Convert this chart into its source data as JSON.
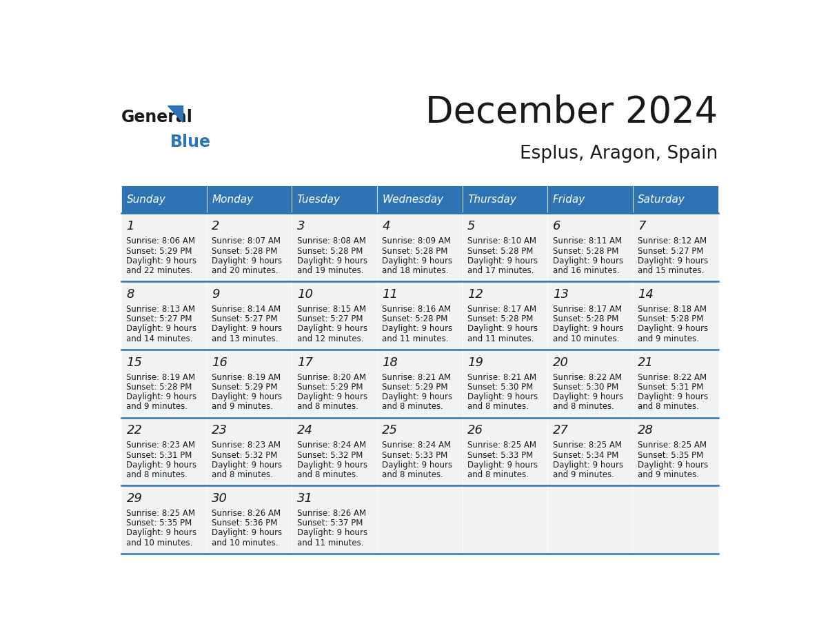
{
  "title": "December 2024",
  "subtitle": "Esplus, Aragon, Spain",
  "header_color": "#2e74b5",
  "header_text_color": "#ffffff",
  "day_names": [
    "Sunday",
    "Monday",
    "Tuesday",
    "Wednesday",
    "Thursday",
    "Friday",
    "Saturday"
  ],
  "title_color": "#1a1a1a",
  "subtitle_color": "#1a1a1a",
  "cell_bg_color": "#f2f2f2",
  "divider_color": "#2e74b5",
  "text_color": "#1a1a1a",
  "days": [
    {
      "day": 1,
      "col": 0,
      "row": 0,
      "sunrise": "8:06 AM",
      "sunset": "5:29 PM",
      "daylight": "9 hours and 22 minutes"
    },
    {
      "day": 2,
      "col": 1,
      "row": 0,
      "sunrise": "8:07 AM",
      "sunset": "5:28 PM",
      "daylight": "9 hours and 20 minutes"
    },
    {
      "day": 3,
      "col": 2,
      "row": 0,
      "sunrise": "8:08 AM",
      "sunset": "5:28 PM",
      "daylight": "9 hours and 19 minutes"
    },
    {
      "day": 4,
      "col": 3,
      "row": 0,
      "sunrise": "8:09 AM",
      "sunset": "5:28 PM",
      "daylight": "9 hours and 18 minutes"
    },
    {
      "day": 5,
      "col": 4,
      "row": 0,
      "sunrise": "8:10 AM",
      "sunset": "5:28 PM",
      "daylight": "9 hours and 17 minutes"
    },
    {
      "day": 6,
      "col": 5,
      "row": 0,
      "sunrise": "8:11 AM",
      "sunset": "5:28 PM",
      "daylight": "9 hours and 16 minutes"
    },
    {
      "day": 7,
      "col": 6,
      "row": 0,
      "sunrise": "8:12 AM",
      "sunset": "5:27 PM",
      "daylight": "9 hours and 15 minutes"
    },
    {
      "day": 8,
      "col": 0,
      "row": 1,
      "sunrise": "8:13 AM",
      "sunset": "5:27 PM",
      "daylight": "9 hours and 14 minutes"
    },
    {
      "day": 9,
      "col": 1,
      "row": 1,
      "sunrise": "8:14 AM",
      "sunset": "5:27 PM",
      "daylight": "9 hours and 13 minutes"
    },
    {
      "day": 10,
      "col": 2,
      "row": 1,
      "sunrise": "8:15 AM",
      "sunset": "5:27 PM",
      "daylight": "9 hours and 12 minutes"
    },
    {
      "day": 11,
      "col": 3,
      "row": 1,
      "sunrise": "8:16 AM",
      "sunset": "5:28 PM",
      "daylight": "9 hours and 11 minutes"
    },
    {
      "day": 12,
      "col": 4,
      "row": 1,
      "sunrise": "8:17 AM",
      "sunset": "5:28 PM",
      "daylight": "9 hours and 11 minutes"
    },
    {
      "day": 13,
      "col": 5,
      "row": 1,
      "sunrise": "8:17 AM",
      "sunset": "5:28 PM",
      "daylight": "9 hours and 10 minutes"
    },
    {
      "day": 14,
      "col": 6,
      "row": 1,
      "sunrise": "8:18 AM",
      "sunset": "5:28 PM",
      "daylight": "9 hours and 9 minutes"
    },
    {
      "day": 15,
      "col": 0,
      "row": 2,
      "sunrise": "8:19 AM",
      "sunset": "5:28 PM",
      "daylight": "9 hours and 9 minutes"
    },
    {
      "day": 16,
      "col": 1,
      "row": 2,
      "sunrise": "8:19 AM",
      "sunset": "5:29 PM",
      "daylight": "9 hours and 9 minutes"
    },
    {
      "day": 17,
      "col": 2,
      "row": 2,
      "sunrise": "8:20 AM",
      "sunset": "5:29 PM",
      "daylight": "9 hours and 8 minutes"
    },
    {
      "day": 18,
      "col": 3,
      "row": 2,
      "sunrise": "8:21 AM",
      "sunset": "5:29 PM",
      "daylight": "9 hours and 8 minutes"
    },
    {
      "day": 19,
      "col": 4,
      "row": 2,
      "sunrise": "8:21 AM",
      "sunset": "5:30 PM",
      "daylight": "9 hours and 8 minutes"
    },
    {
      "day": 20,
      "col": 5,
      "row": 2,
      "sunrise": "8:22 AM",
      "sunset": "5:30 PM",
      "daylight": "9 hours and 8 minutes"
    },
    {
      "day": 21,
      "col": 6,
      "row": 2,
      "sunrise": "8:22 AM",
      "sunset": "5:31 PM",
      "daylight": "9 hours and 8 minutes"
    },
    {
      "day": 22,
      "col": 0,
      "row": 3,
      "sunrise": "8:23 AM",
      "sunset": "5:31 PM",
      "daylight": "9 hours and 8 minutes"
    },
    {
      "day": 23,
      "col": 1,
      "row": 3,
      "sunrise": "8:23 AM",
      "sunset": "5:32 PM",
      "daylight": "9 hours and 8 minutes"
    },
    {
      "day": 24,
      "col": 2,
      "row": 3,
      "sunrise": "8:24 AM",
      "sunset": "5:32 PM",
      "daylight": "9 hours and 8 minutes"
    },
    {
      "day": 25,
      "col": 3,
      "row": 3,
      "sunrise": "8:24 AM",
      "sunset": "5:33 PM",
      "daylight": "9 hours and 8 minutes"
    },
    {
      "day": 26,
      "col": 4,
      "row": 3,
      "sunrise": "8:25 AM",
      "sunset": "5:33 PM",
      "daylight": "9 hours and 8 minutes"
    },
    {
      "day": 27,
      "col": 5,
      "row": 3,
      "sunrise": "8:25 AM",
      "sunset": "5:34 PM",
      "daylight": "9 hours and 9 minutes"
    },
    {
      "day": 28,
      "col": 6,
      "row": 3,
      "sunrise": "8:25 AM",
      "sunset": "5:35 PM",
      "daylight": "9 hours and 9 minutes"
    },
    {
      "day": 29,
      "col": 0,
      "row": 4,
      "sunrise": "8:25 AM",
      "sunset": "5:35 PM",
      "daylight": "9 hours and 10 minutes"
    },
    {
      "day": 30,
      "col": 1,
      "row": 4,
      "sunrise": "8:26 AM",
      "sunset": "5:36 PM",
      "daylight": "9 hours and 10 minutes"
    },
    {
      "day": 31,
      "col": 2,
      "row": 4,
      "sunrise": "8:26 AM",
      "sunset": "5:37 PM",
      "daylight": "9 hours and 11 minutes"
    }
  ],
  "logo_general_color": "#1a1a1a",
  "logo_blue_color": "#2e74b5",
  "logo_triangle_color": "#2e74b5"
}
